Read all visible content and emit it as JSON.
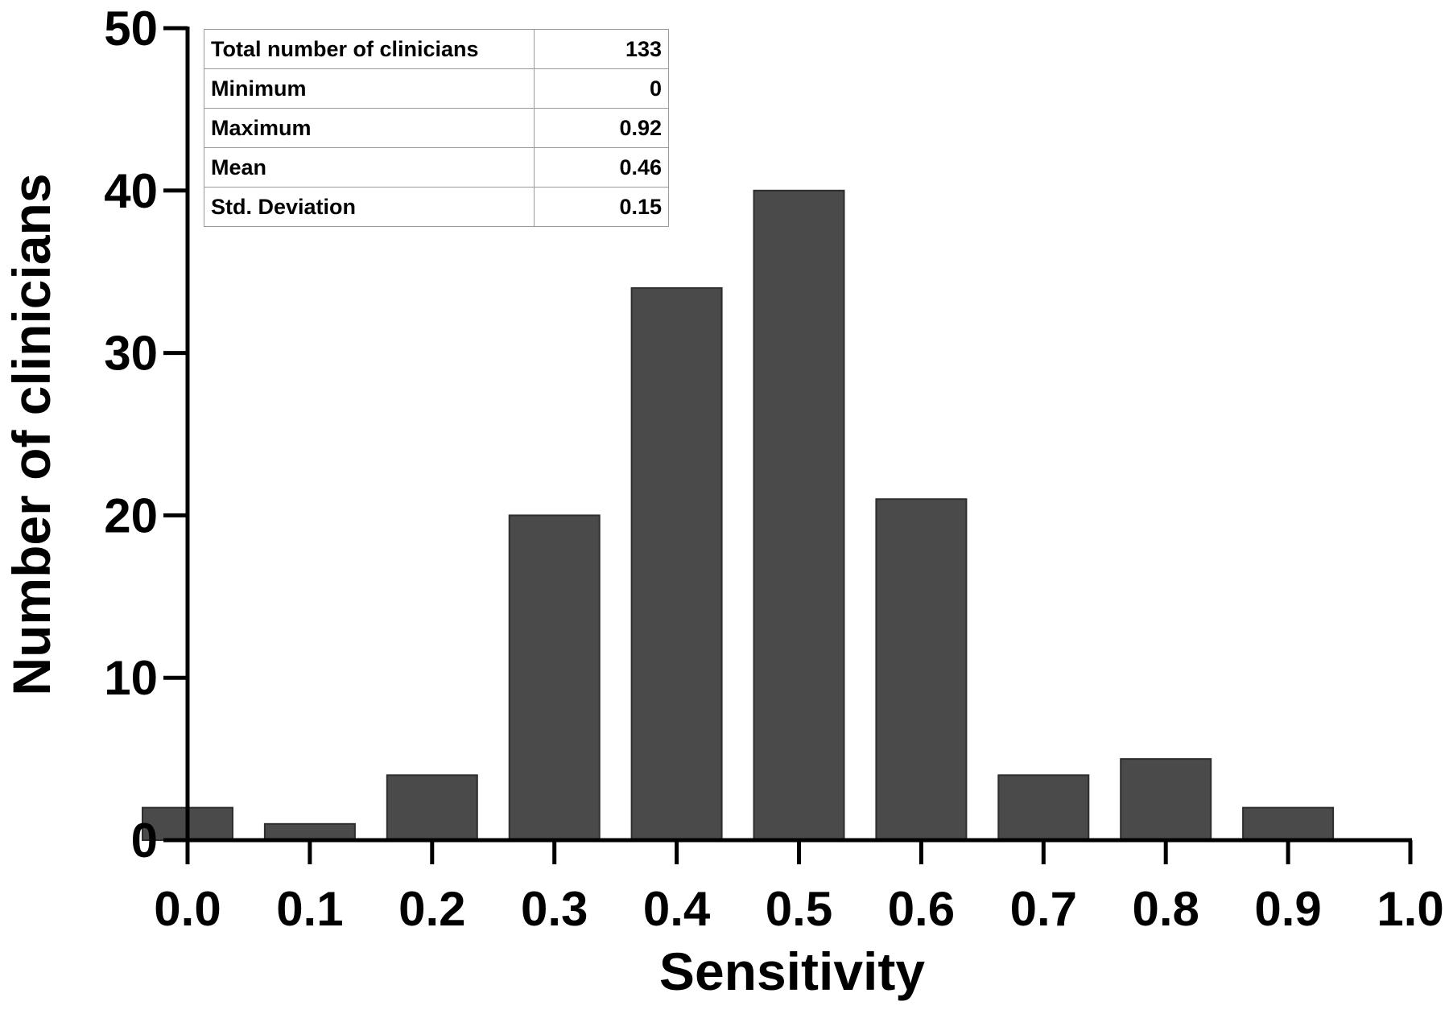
{
  "chart_data": {
    "type": "bar",
    "categories": [
      "0.0",
      "0.1",
      "0.2",
      "0.3",
      "0.4",
      "0.5",
      "0.6",
      "0.7",
      "0.8",
      "0.9",
      "1.0"
    ],
    "x": [
      0.0,
      0.1,
      0.2,
      0.3,
      0.4,
      0.5,
      0.6,
      0.7,
      0.8,
      0.9
    ],
    "values": [
      2,
      1,
      4,
      20,
      34,
      40,
      21,
      4,
      5,
      2
    ],
    "title": "",
    "xlabel": "Sensitivity",
    "ylabel": "Number of clinicians",
    "xlim": [
      0.0,
      1.0
    ],
    "ylim": [
      0,
      50
    ],
    "yticks": [
      "0",
      "10",
      "20",
      "30",
      "40",
      "50"
    ],
    "grid": false,
    "bar_color": "#4a4a4a",
    "axis_color": "#000000"
  },
  "stats_table": {
    "rows": [
      {
        "label": "Total number of clinicians",
        "value": "133"
      },
      {
        "label": "Minimum",
        "value": "0"
      },
      {
        "label": "Maximum",
        "value": "0.92"
      },
      {
        "label": "Mean",
        "value": "0.46"
      },
      {
        "label": "Std. Deviation",
        "value": "0.15"
      }
    ]
  }
}
